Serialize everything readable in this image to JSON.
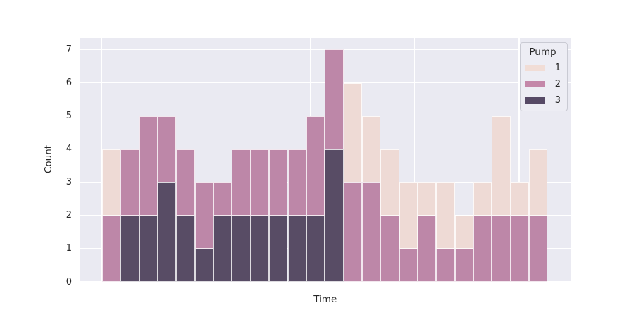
{
  "chart_data": {
    "type": "bar",
    "subtype": "stacked-histogram",
    "title": "",
    "xlabel": "Time",
    "ylabel": "Count",
    "ylim": [
      0,
      7.36
    ],
    "yticks": [
      0,
      1,
      2,
      3,
      4,
      5,
      6,
      7
    ],
    "x_tick_labels_visible": false,
    "grid": true,
    "bin_count": 24,
    "stack_order_bottom_to_top": [
      "3",
      "2",
      "1"
    ],
    "series": [
      {
        "name": "1",
        "color": "#eedad5",
        "values": [
          2,
          0,
          0,
          0,
          0,
          0,
          0,
          0,
          0,
          0,
          0,
          0,
          0,
          3,
          2,
          2,
          2,
          1,
          2,
          1,
          1,
          3,
          1,
          2
        ]
      },
      {
        "name": "2",
        "color": "#bd87a8",
        "values": [
          2,
          2,
          3,
          2,
          2,
          2,
          1,
          2,
          2,
          2,
          2,
          3,
          3,
          3,
          3,
          2,
          1,
          2,
          1,
          1,
          2,
          2,
          2,
          2
        ]
      },
      {
        "name": "3",
        "color": "#584c65",
        "values": [
          0,
          2,
          2,
          3,
          2,
          1,
          2,
          2,
          2,
          2,
          2,
          2,
          4,
          0,
          0,
          0,
          0,
          0,
          0,
          0,
          0,
          0,
          0,
          0
        ]
      }
    ],
    "totals": [
      4,
      4,
      5,
      5,
      4,
      3,
      3,
      4,
      4,
      4,
      4,
      5,
      7,
      6,
      5,
      4,
      3,
      3,
      3,
      2,
      3,
      5,
      3,
      4
    ],
    "legend": {
      "title": "Pump",
      "position": "upper right",
      "entries": [
        {
          "label": "1",
          "color": "#f1ddd6"
        },
        {
          "label": "2",
          "color": "#c487a9"
        },
        {
          "label": "3",
          "color": "#574a66"
        }
      ]
    }
  },
  "colors": {
    "figure_bg": "#ffffff",
    "plot_bg": "#eaeaf2",
    "gridline": "#ffffff",
    "text": "#262626",
    "legend_bg": "#ededf4",
    "legend_border": "#c9cad3"
  }
}
